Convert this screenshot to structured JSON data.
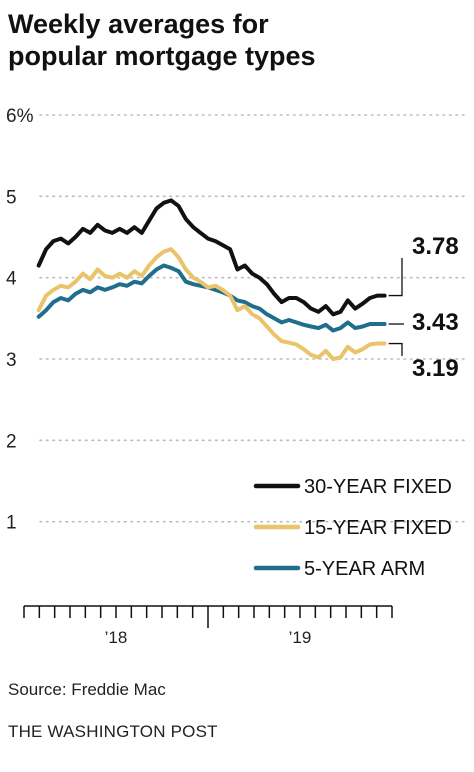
{
  "title_line1": "Weekly averages for",
  "title_line2": "popular mortgage types",
  "source": "Source: Freddie Mac",
  "credit": "THE WASHINGTON POST",
  "chart_data": {
    "type": "line",
    "title": "Weekly averages for popular mortgage types",
    "ylim": [
      0,
      6
    ],
    "yticks": [
      {
        "value": 6,
        "label": "6%"
      },
      {
        "value": 5,
        "label": "5"
      },
      {
        "value": 4,
        "label": "4"
      },
      {
        "value": 3,
        "label": "3"
      },
      {
        "value": 2,
        "label": "2"
      },
      {
        "value": 1,
        "label": "1"
      }
    ],
    "xlim": [
      2017.5,
      2019.5
    ],
    "xticks": [
      {
        "value": 2018,
        "label": "’18"
      },
      {
        "value": 2019,
        "label": "’19"
      }
    ],
    "grid": "dotted horizontal",
    "legend_position": "bottom-right",
    "series": [
      {
        "name": "30-YEAR FIXED",
        "color": "#111111",
        "end_label": "3.78",
        "x": [
          2017.58,
          2017.62,
          2017.66,
          2017.7,
          2017.74,
          2017.78,
          2017.82,
          2017.86,
          2017.9,
          2017.94,
          2017.98,
          2018.02,
          2018.06,
          2018.1,
          2018.14,
          2018.18,
          2018.22,
          2018.26,
          2018.3,
          2018.34,
          2018.38,
          2018.42,
          2018.46,
          2018.5,
          2018.54,
          2018.58,
          2018.62,
          2018.66,
          2018.7,
          2018.74,
          2018.78,
          2018.82,
          2018.86,
          2018.9,
          2018.94,
          2018.98,
          2019.02,
          2019.06,
          2019.1,
          2019.14,
          2019.18,
          2019.22,
          2019.26,
          2019.3,
          2019.34,
          2019.38,
          2019.42,
          2019.46
        ],
        "y": [
          4.15,
          4.35,
          4.45,
          4.48,
          4.42,
          4.5,
          4.6,
          4.55,
          4.65,
          4.58,
          4.55,
          4.6,
          4.55,
          4.62,
          4.55,
          4.7,
          4.85,
          4.92,
          4.95,
          4.88,
          4.72,
          4.62,
          4.55,
          4.48,
          4.45,
          4.4,
          4.35,
          4.1,
          4.15,
          4.05,
          4.0,
          3.92,
          3.8,
          3.7,
          3.75,
          3.75,
          3.7,
          3.62,
          3.58,
          3.65,
          3.55,
          3.58,
          3.72,
          3.62,
          3.68,
          3.75,
          3.78,
          3.78
        ]
      },
      {
        "name": "15-YEAR FIXED",
        "color": "#e9c46a",
        "end_label": "3.19",
        "x": [
          2017.58,
          2017.62,
          2017.66,
          2017.7,
          2017.74,
          2017.78,
          2017.82,
          2017.86,
          2017.9,
          2017.94,
          2017.98,
          2018.02,
          2018.06,
          2018.1,
          2018.14,
          2018.18,
          2018.22,
          2018.26,
          2018.3,
          2018.34,
          2018.38,
          2018.42,
          2018.46,
          2018.5,
          2018.54,
          2018.58,
          2018.62,
          2018.66,
          2018.7,
          2018.74,
          2018.78,
          2018.82,
          2018.86,
          2018.9,
          2018.94,
          2018.98,
          2019.02,
          2019.06,
          2019.1,
          2019.14,
          2019.18,
          2019.22,
          2019.26,
          2019.3,
          2019.34,
          2019.38,
          2019.42,
          2019.46
        ],
        "y": [
          3.6,
          3.78,
          3.85,
          3.9,
          3.88,
          3.95,
          4.05,
          3.98,
          4.1,
          4.02,
          4.0,
          4.05,
          4.0,
          4.08,
          4.02,
          4.15,
          4.25,
          4.32,
          4.35,
          4.25,
          4.1,
          4.0,
          3.95,
          3.88,
          3.9,
          3.85,
          3.78,
          3.6,
          3.65,
          3.55,
          3.5,
          3.4,
          3.3,
          3.22,
          3.2,
          3.18,
          3.12,
          3.05,
          3.02,
          3.1,
          3.0,
          3.02,
          3.15,
          3.08,
          3.12,
          3.18,
          3.19,
          3.19
        ]
      },
      {
        "name": "5-YEAR ARM",
        "color": "#1f6e8c",
        "end_label": "3.43",
        "x": [
          2017.58,
          2017.62,
          2017.66,
          2017.7,
          2017.74,
          2017.78,
          2017.82,
          2017.86,
          2017.9,
          2017.94,
          2017.98,
          2018.02,
          2018.06,
          2018.1,
          2018.14,
          2018.18,
          2018.22,
          2018.26,
          2018.3,
          2018.34,
          2018.38,
          2018.42,
          2018.46,
          2018.5,
          2018.54,
          2018.58,
          2018.62,
          2018.66,
          2018.7,
          2018.74,
          2018.78,
          2018.82,
          2018.86,
          2018.9,
          2018.94,
          2018.98,
          2019.02,
          2019.06,
          2019.1,
          2019.14,
          2019.18,
          2019.22,
          2019.26,
          2019.3,
          2019.34,
          2019.38,
          2019.42,
          2019.46
        ],
        "y": [
          3.52,
          3.6,
          3.7,
          3.75,
          3.72,
          3.8,
          3.85,
          3.82,
          3.88,
          3.85,
          3.88,
          3.92,
          3.9,
          3.95,
          3.93,
          4.02,
          4.1,
          4.15,
          4.12,
          4.08,
          3.95,
          3.92,
          3.9,
          3.88,
          3.85,
          3.82,
          3.78,
          3.72,
          3.7,
          3.65,
          3.62,
          3.55,
          3.5,
          3.45,
          3.48,
          3.45,
          3.42,
          3.4,
          3.38,
          3.42,
          3.35,
          3.38,
          3.45,
          3.38,
          3.4,
          3.43,
          3.43,
          3.43
        ]
      }
    ]
  }
}
